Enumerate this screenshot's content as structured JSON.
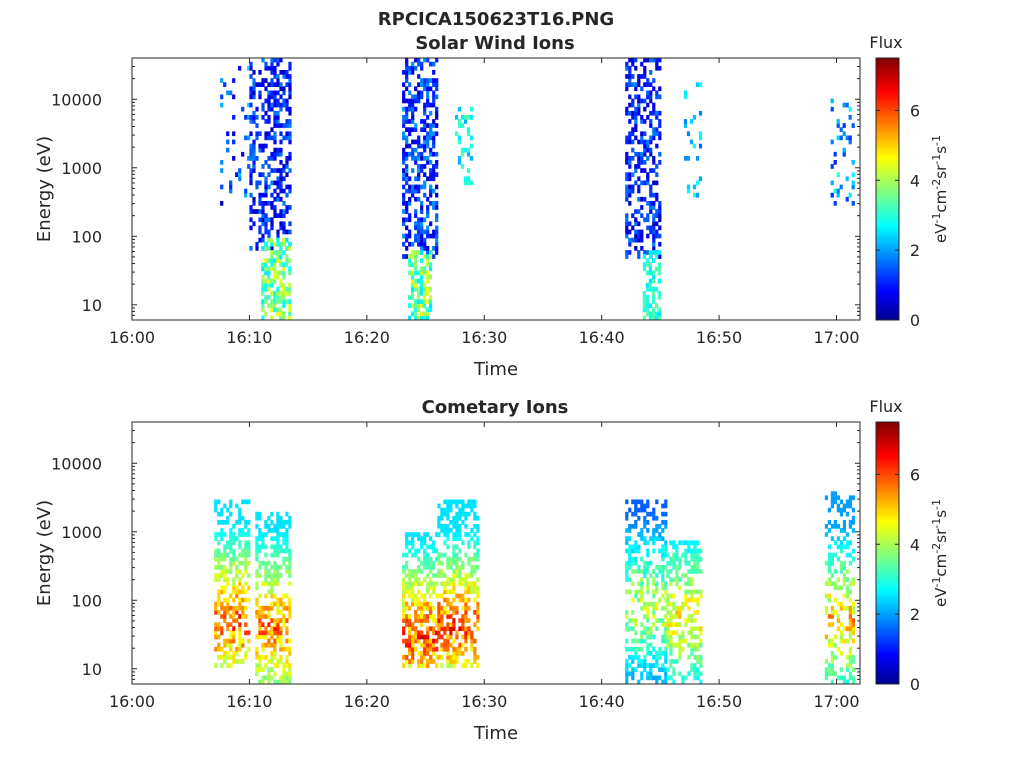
{
  "figure_title": "RPCICA150623T16.PNG",
  "colors": {
    "jet": [
      "#00008f",
      "#0000ff",
      "#00ffff",
      "#ffff00",
      "#ff0000",
      "#800000"
    ],
    "axis": "#262626"
  },
  "chart_data": [
    {
      "type": "heatmap",
      "title": "Solar Wind Ions",
      "xlabel": "Time",
      "ylabel": "Energy (eV)",
      "x_ticks": [
        "16:00",
        "16:10",
        "16:20",
        "16:30",
        "16:40",
        "16:50",
        "17:00"
      ],
      "x_range": [
        "16:00",
        "17:02"
      ],
      "y_scale": "log",
      "y_ticks": [
        10,
        100,
        1000,
        10000
      ],
      "y_range": [
        6,
        40000
      ],
      "colorbar": {
        "title": "Flux",
        "label": "eV-1cm-2sr-1s-1",
        "range": [
          0,
          7.5
        ],
        "ticks": [
          0,
          2,
          4,
          6
        ]
      },
      "bursts": [
        {
          "t_start": "16:07:30",
          "t_end": "16:10:00",
          "e_min": 300,
          "e_max": 30000,
          "flux_min": 0.3,
          "flux_max": 2.5,
          "density": 0.12
        },
        {
          "t_start": "16:10:00",
          "t_end": "16:13:30",
          "e_min": 60,
          "e_max": 40000,
          "flux_min": 0.3,
          "flux_max": 1.8,
          "density": 0.45
        },
        {
          "t_start": "16:11:00",
          "t_end": "16:13:30",
          "e_min": 6,
          "e_max": 100,
          "flux_min": 2.5,
          "flux_max": 4.5,
          "density": 0.6
        },
        {
          "t_start": "16:23:00",
          "t_end": "16:26:00",
          "e_min": 50,
          "e_max": 40000,
          "flux_min": 0.3,
          "flux_max": 2.0,
          "density": 0.5
        },
        {
          "t_start": "16:23:30",
          "t_end": "16:25:30",
          "e_min": 6,
          "e_max": 60,
          "flux_min": 2.5,
          "flux_max": 4.5,
          "density": 0.6
        },
        {
          "t_start": "16:27:30",
          "t_end": "16:29:00",
          "e_min": 600,
          "e_max": 8000,
          "flux_min": 2.0,
          "flux_max": 3.5,
          "density": 0.3
        },
        {
          "t_start": "16:42:00",
          "t_end": "16:45:00",
          "e_min": 50,
          "e_max": 40000,
          "flux_min": 0.3,
          "flux_max": 1.8,
          "density": 0.45
        },
        {
          "t_start": "16:43:30",
          "t_end": "16:45:00",
          "e_min": 6,
          "e_max": 60,
          "flux_min": 2.5,
          "flux_max": 3.5,
          "density": 0.6
        },
        {
          "t_start": "16:47:00",
          "t_end": "16:48:30",
          "e_min": 300,
          "e_max": 20000,
          "flux_min": 1.5,
          "flux_max": 3.0,
          "density": 0.15
        },
        {
          "t_start": "16:59:30",
          "t_end": "17:01:30",
          "e_min": 300,
          "e_max": 10000,
          "flux_min": 1.0,
          "flux_max": 3.0,
          "density": 0.2
        }
      ]
    },
    {
      "type": "heatmap",
      "title": "Cometary Ions",
      "xlabel": "Time",
      "ylabel": "Energy (eV)",
      "x_ticks": [
        "16:00",
        "16:10",
        "16:20",
        "16:30",
        "16:40",
        "16:50",
        "17:00"
      ],
      "x_range": [
        "16:00",
        "17:02"
      ],
      "y_scale": "log",
      "y_ticks": [
        10,
        100,
        1000,
        10000
      ],
      "y_range": [
        6,
        40000
      ],
      "colorbar": {
        "title": "Flux",
        "label": "eV-1cm-2sr-1s-1",
        "range": [
          0,
          7.5
        ],
        "ticks": [
          0,
          2,
          4,
          6
        ]
      },
      "bursts": [
        {
          "t_start": "16:07:00",
          "t_end": "16:10:00",
          "e_min": 10,
          "e_max": 3000,
          "flux_min": 2.5,
          "flux_max": 6.8,
          "density": 0.55,
          "peak_e": 50
        },
        {
          "t_start": "16:10:30",
          "t_end": "16:13:30",
          "e_min": 6,
          "e_max": 2000,
          "flux_min": 2.5,
          "flux_max": 6.5,
          "density": 0.55,
          "peak_e": 40
        },
        {
          "t_start": "16:23:00",
          "t_end": "16:26:00",
          "e_min": 10,
          "e_max": 1000,
          "flux_min": 2.5,
          "flux_max": 7.0,
          "density": 0.6,
          "peak_e": 30
        },
        {
          "t_start": "16:26:00",
          "t_end": "16:29:30",
          "e_min": 10,
          "e_max": 3000,
          "flux_min": 2.5,
          "flux_max": 7.0,
          "density": 0.55,
          "peak_e": 40
        },
        {
          "t_start": "16:42:00",
          "t_end": "16:45:30",
          "e_min": 6,
          "e_max": 3000,
          "flux_min": 1.5,
          "flux_max": 5.0,
          "density": 0.45,
          "peak_e": 80
        },
        {
          "t_start": "16:45:30",
          "t_end": "16:48:30",
          "e_min": 6,
          "e_max": 700,
          "flux_min": 2.0,
          "flux_max": 5.5,
          "density": 0.5,
          "peak_e": 60
        },
        {
          "t_start": "16:59:00",
          "t_end": "17:01:30",
          "e_min": 6,
          "e_max": 4000,
          "flux_min": 2.0,
          "flux_max": 6.0,
          "density": 0.45,
          "peak_e": 50
        }
      ]
    }
  ]
}
